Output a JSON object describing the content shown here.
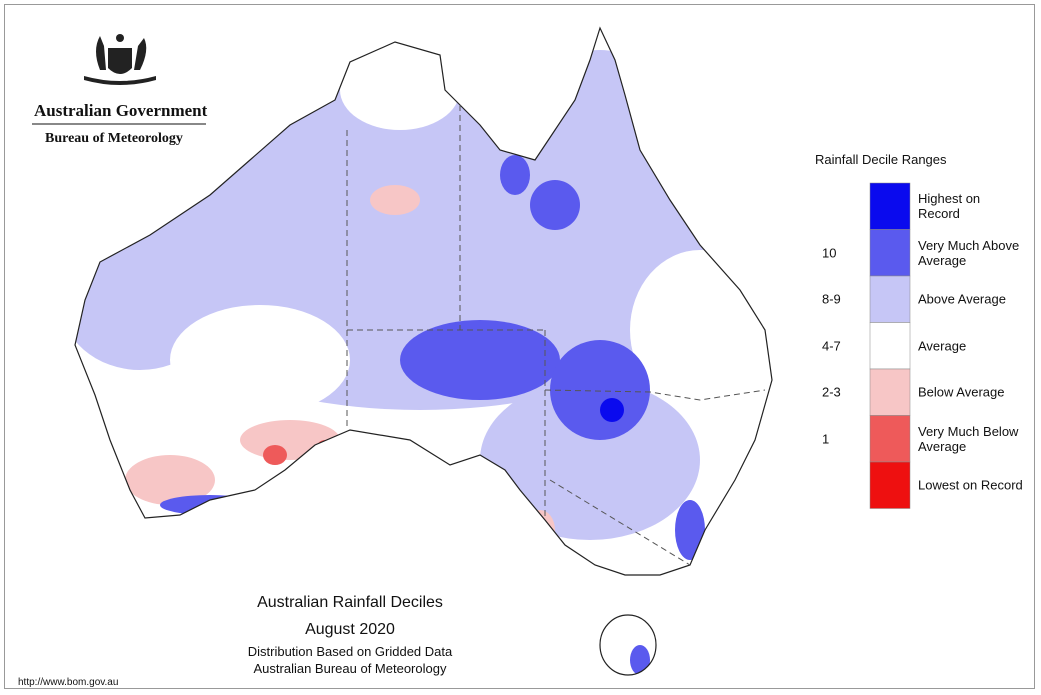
{
  "header": {
    "government": "Australian Government",
    "bureau": "Bureau of Meteorology"
  },
  "legend": {
    "title": "Rainfall Decile Ranges",
    "items": [
      {
        "label": "Highest on Record",
        "color": "#0a0aee"
      },
      {
        "decile": "10",
        "label": "Very Much Above Average",
        "color": "#5a5aee"
      },
      {
        "decile": "8-9",
        "label": "Above Average",
        "color": "#c6c6f6"
      },
      {
        "decile": "4-7",
        "label": "Average",
        "color": "#ffffff"
      },
      {
        "decile": "2-3",
        "label": "Below Average",
        "color": "#f7c6c6"
      },
      {
        "decile": "1",
        "label": "Very Much Below Average",
        "color": "#ee5a5a"
      },
      {
        "label": "Lowest on Record",
        "color": "#ee1010"
      }
    ]
  },
  "caption": {
    "title": "Australian Rainfall Deciles",
    "period": "August 2020",
    "method": "Distribution Based on Gridded Data",
    "source": "Australian Bureau of Meteorology"
  },
  "url": "http://www.bom.gov.au"
}
